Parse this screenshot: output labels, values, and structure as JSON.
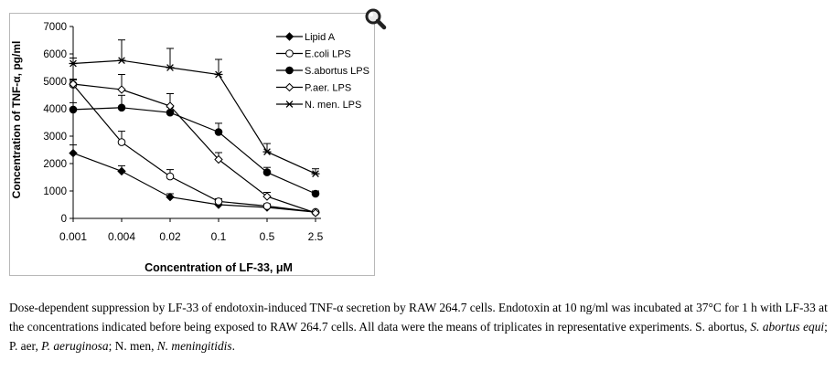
{
  "chart_data": {
    "type": "line",
    "xlabel": "Concentration of LF-33, μM",
    "ylabel": "Concentration of TNF-α, pg/ml",
    "categories": [
      "0.001",
      "0.004",
      "0.02",
      "0.1",
      "0.5",
      "2.5"
    ],
    "ylim": [
      0,
      7000
    ],
    "yticks": [
      0,
      1000,
      2000,
      3000,
      4000,
      5000,
      6000,
      7000
    ],
    "grid": false,
    "legend_position": "top-right",
    "series": [
      {
        "name": "Lipid A",
        "marker": "filled-diamond",
        "values": [
          2380,
          1720,
          780,
          500,
          400,
          230
        ],
        "errors": [
          300,
          200,
          120,
          80,
          60,
          40
        ]
      },
      {
        "name": "E.coli LPS",
        "marker": "open-circle",
        "values": [
          4880,
          2780,
          1530,
          620,
          450,
          230
        ],
        "errors": [
          200,
          400,
          250,
          100,
          80,
          40
        ]
      },
      {
        "name": "S.abortus LPS",
        "marker": "filled-circle",
        "values": [
          3970,
          4040,
          3860,
          3150,
          1680,
          900
        ],
        "errors": [
          250,
          450,
          200,
          320,
          180,
          100
        ]
      },
      {
        "name": "P.aer. LPS",
        "marker": "open-diamond",
        "values": [
          4900,
          4700,
          4100,
          2150,
          800,
          200
        ],
        "errors": [
          150,
          550,
          450,
          250,
          150,
          40
        ]
      },
      {
        "name": "N. men. LPS",
        "marker": "star",
        "values": [
          5650,
          5760,
          5500,
          5250,
          2430,
          1630
        ],
        "errors": [
          200,
          750,
          700,
          550,
          300,
          180
        ]
      }
    ]
  },
  "caption": {
    "part1": "Dose-dependent suppression by LF-33 of endotoxin-induced TNF-α secretion by RAW 264.7 cells. Endotoxin at 10 ng/ml was incubated at 37°C for 1 h with LF-33 at the concentrations indicated before being exposed to RAW 264.7 cells. All data were the means of triplicates in representative experiments. S. abortus, ",
    "sab_italic": "S. abortus equi",
    "part2": "; P. aer, ",
    "paer_italic": "P. aeruginosa",
    "part3": "; N. men, ",
    "nmen_italic": "N. meningitidis",
    "part4": "."
  },
  "icons": {
    "zoom": "magnifier-zoom-icon"
  }
}
